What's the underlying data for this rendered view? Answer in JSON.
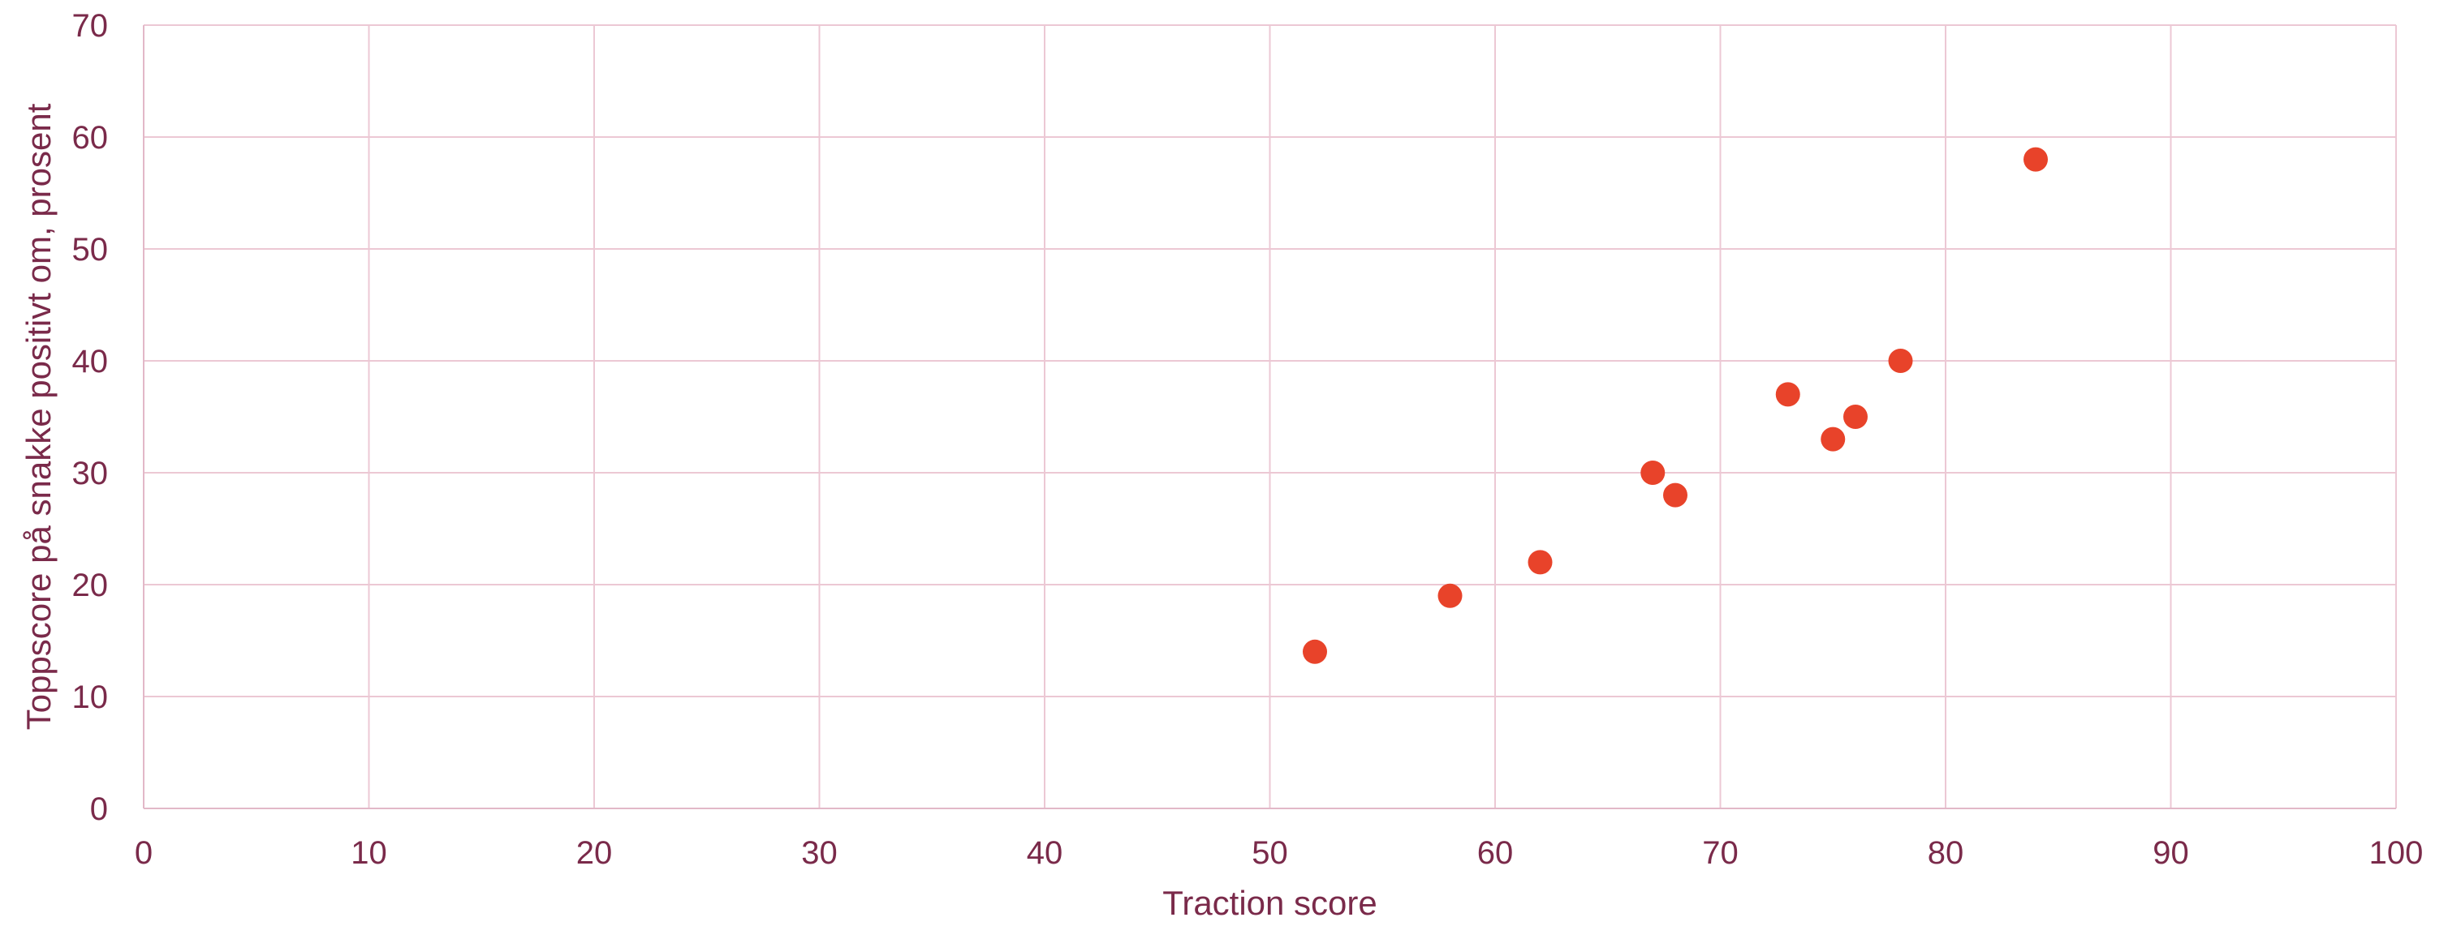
{
  "chart_data": {
    "type": "scatter",
    "title": "",
    "xlabel": "Traction score",
    "ylabel": "Toppscore på snakke positivt om, prosent",
    "xlim": [
      0,
      100
    ],
    "ylim": [
      0,
      70
    ],
    "xticks": [
      0,
      10,
      20,
      30,
      40,
      50,
      60,
      70,
      80,
      90,
      100
    ],
    "yticks": [
      0,
      10,
      20,
      30,
      40,
      50,
      60,
      70
    ],
    "grid": true,
    "legend": "none",
    "series": [
      {
        "color": "#e8432a",
        "points": [
          {
            "x": 52,
            "y": 14
          },
          {
            "x": 58,
            "y": 19
          },
          {
            "x": 62,
            "y": 22
          },
          {
            "x": 67,
            "y": 30
          },
          {
            "x": 68,
            "y": 28
          },
          {
            "x": 73,
            "y": 37
          },
          {
            "x": 75,
            "y": 33
          },
          {
            "x": 76,
            "y": 35
          },
          {
            "x": 78,
            "y": 40
          },
          {
            "x": 84,
            "y": 58
          }
        ]
      }
    ]
  }
}
